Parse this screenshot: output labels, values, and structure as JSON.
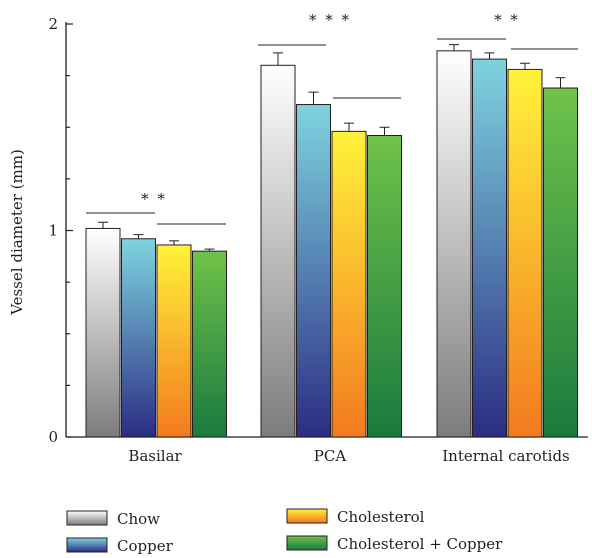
{
  "chart_data": {
    "type": "bar",
    "categories": [
      "Basilar",
      "PCA",
      "Internal carotids"
    ],
    "series": [
      {
        "name": "Chow",
        "values": [
          1.01,
          1.8,
          1.87
        ],
        "errors": [
          0.03,
          0.06,
          0.03
        ]
      },
      {
        "name": "Copper",
        "values": [
          0.96,
          1.61,
          1.83
        ],
        "errors": [
          0.02,
          0.06,
          0.03
        ]
      },
      {
        "name": "Cholesterol",
        "values": [
          0.93,
          1.48,
          1.78
        ],
        "errors": [
          0.02,
          0.04,
          0.03
        ]
      },
      {
        "name": "Cholesterol + Copper",
        "values": [
          0.9,
          1.46,
          1.69
        ],
        "errors": [
          0.01,
          0.04,
          0.05
        ]
      }
    ],
    "title": "",
    "xlabel": "",
    "ylabel": "Vessel diameter (mm)",
    "ylim": [
      0,
      2
    ],
    "yticks": [
      "0",
      "1",
      "2"
    ],
    "significance": [
      "* *",
      "* * *",
      "* *"
    ],
    "grid": false,
    "legend_position": "bottom",
    "series_colors": [
      [
        "#ffffff",
        "#7c7c7c"
      ],
      [
        "#7fd3e0",
        "#2b2d82"
      ],
      [
        "#fff23a",
        "#f37a1f"
      ],
      [
        "#6fc24a",
        "#1a7a3e"
      ]
    ]
  }
}
